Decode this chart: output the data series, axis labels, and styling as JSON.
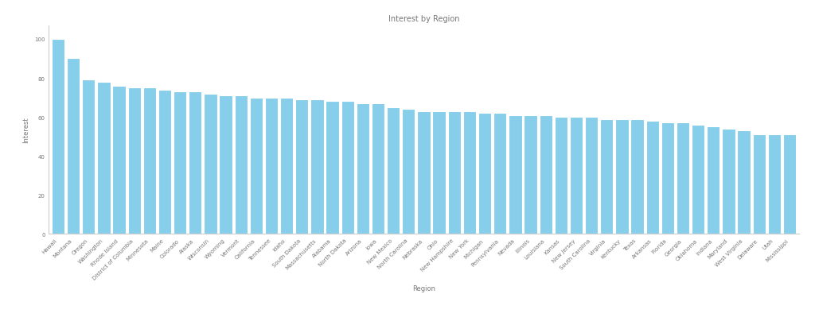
{
  "title": "Interest by Region",
  "xlabel": "Region",
  "ylabel": "Interest",
  "bar_color": "#87CEEB",
  "categories": [
    "Hawaii",
    "Montana",
    "Oregon",
    "Washington",
    "Rhode Island",
    "District of Columbia",
    "Minnesota",
    "Maine",
    "Colorado",
    "Alaska",
    "Wisconsin",
    "Wyoming",
    "Vermont",
    "California",
    "Tennessee",
    "Idaho",
    "South Dakota",
    "Massachusetts",
    "Alabama",
    "North Dakota",
    "Arizona",
    "Iowa",
    "New Mexico",
    "North Carolina",
    "Nebraska",
    "Ohio",
    "New Hampshire",
    "New York",
    "Michigan",
    "Pennsylvania",
    "Nevada",
    "Illinois",
    "Louisiana",
    "Kansas",
    "New Jersey",
    "South Carolina",
    "Virginia",
    "Kentucky",
    "Texas",
    "Arkansas",
    "Florida",
    "Georgia",
    "Oklahoma",
    "Indiana",
    "Maryland",
    "West Virginia",
    "Delaware",
    "Utah",
    "Mississippi"
  ],
  "values": [
    100,
    90,
    79,
    78,
    76,
    75,
    75,
    74,
    73,
    73,
    72,
    71,
    71,
    70,
    70,
    70,
    69,
    69,
    68,
    68,
    67,
    67,
    65,
    64,
    63,
    63,
    63,
    63,
    62,
    62,
    61,
    61,
    61,
    60,
    60,
    60,
    59,
    59,
    59,
    58,
    57,
    57,
    56,
    55,
    54,
    53,
    51,
    51,
    51
  ],
  "yticks": [
    0,
    20,
    40,
    60,
    80,
    100
  ],
  "ylim": [
    0,
    107
  ],
  "title_fontsize": 7,
  "axis_label_fontsize": 6,
  "tick_fontsize": 5,
  "tick_color": "#777777",
  "spine_color": "#cccccc",
  "label_color": "#777777",
  "bar_edge_color": "white",
  "bar_linewidth": 0.8
}
